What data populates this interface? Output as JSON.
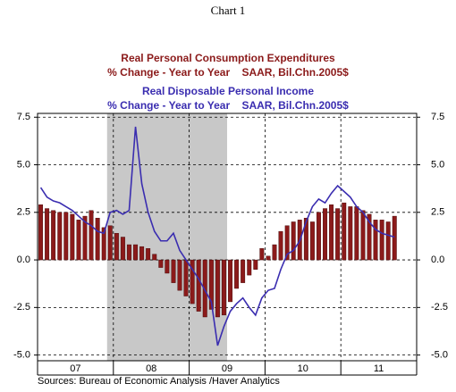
{
  "chart_data": {
    "type": "bar-line",
    "title": "Chart 1",
    "source": "Sources:  Bureau of Economic Analysis /Haver Analytics",
    "xlim": [
      2007,
      2012
    ],
    "xticks": [
      2007,
      2008,
      2009,
      2010,
      2011,
      2012
    ],
    "xtick_labels": [
      "07",
      "08",
      "09",
      "10",
      "11"
    ],
    "shade": [
      2007.917,
      2009.5
    ],
    "ylim": [
      -5.3,
      7.7
    ],
    "yticks": [
      7.5,
      {
        "value": 5.0,
        "label": "5.0"
      },
      {
        "value": 2.5,
        "label": "2.5"
      },
      {
        "value": 0.0,
        "label": "0.0"
      },
      -2.5,
      {
        "value": -5.0,
        "label": "-5.0"
      }
    ],
    "y2lim": [
      -5.3,
      7.7
    ],
    "y2ticks": [
      7.5,
      {
        "value": 5.0,
        "label": "5.0"
      },
      {
        "value": 2.5,
        "label": "2.5"
      },
      {
        "value": 0.0,
        "label": "0.0"
      },
      -2.5,
      {
        "value": -5.0,
        "label": "-5.0"
      }
    ],
    "grid": true,
    "x": [
      2007.042,
      2007.125,
      2007.208,
      2007.292,
      2007.375,
      2007.458,
      2007.542,
      2007.625,
      2007.708,
      2007.792,
      2007.875,
      2007.958,
      2008.042,
      2008.125,
      2008.208,
      2008.292,
      2008.375,
      2008.458,
      2008.542,
      2008.625,
      2008.708,
      2008.792,
      2008.875,
      2008.958,
      2009.042,
      2009.125,
      2009.208,
      2009.292,
      2009.375,
      2009.458,
      2009.542,
      2009.625,
      2009.708,
      2009.792,
      2009.875,
      2009.958,
      2010.042,
      2010.125,
      2010.208,
      2010.292,
      2010.375,
      2010.458,
      2010.542,
      2010.625,
      2010.708,
      2010.792,
      2010.875,
      2010.958,
      2011.042,
      2011.125,
      2011.208,
      2011.292,
      2011.375,
      2011.458,
      2011.542,
      2011.625,
      2011.708
    ],
    "series": [
      {
        "name": "Real Personal Consumption Expenditures",
        "units": "% Change - Year to Year    SAAR, Bil.Chn.2005$",
        "kind": "bar",
        "color": "#8b1a1a",
        "values": [
          2.9,
          2.7,
          2.6,
          2.5,
          2.5,
          2.4,
          2.1,
          2.3,
          2.6,
          2.2,
          1.7,
          1.8,
          1.4,
          1.2,
          0.8,
          0.8,
          0.7,
          0.6,
          0.3,
          -0.4,
          -0.7,
          -1.2,
          -1.6,
          -1.9,
          -2.3,
          -2.7,
          -3.0,
          -2.6,
          -3.0,
          -2.9,
          -2.2,
          -1.5,
          -1.2,
          -0.8,
          -0.5,
          0.6,
          0.2,
          0.8,
          1.5,
          1.8,
          2.0,
          2.1,
          2.2,
          2.0,
          2.5,
          2.7,
          2.9,
          2.7,
          3.0,
          2.8,
          2.8,
          2.6,
          2.4,
          2.1,
          2.1,
          2.0,
          2.3
        ]
      },
      {
        "name": "Real Disposable Personal Income",
        "units": "% Change - Year to Year    SAAR, Bil.Chn.2005$",
        "kind": "line",
        "color": "#3a2db0",
        "values": [
          3.8,
          3.3,
          3.1,
          3.0,
          2.8,
          2.6,
          2.3,
          2.0,
          1.8,
          1.5,
          1.4,
          2.5,
          2.6,
          2.4,
          2.6,
          7.0,
          4.0,
          2.5,
          1.5,
          1.0,
          1.0,
          1.4,
          0.5,
          0.0,
          -0.5,
          -1.0,
          -1.6,
          -2.2,
          -4.5,
          -3.5,
          -2.7,
          -2.3,
          -2.0,
          -2.5,
          -2.9,
          -2.0,
          -1.6,
          -1.5,
          -0.5,
          0.3,
          0.5,
          1.0,
          2.0,
          2.8,
          3.2,
          3.0,
          3.5,
          3.9,
          3.6,
          3.3,
          2.8,
          2.5,
          2.0,
          1.6,
          1.4,
          1.3,
          1.2
        ]
      }
    ]
  }
}
